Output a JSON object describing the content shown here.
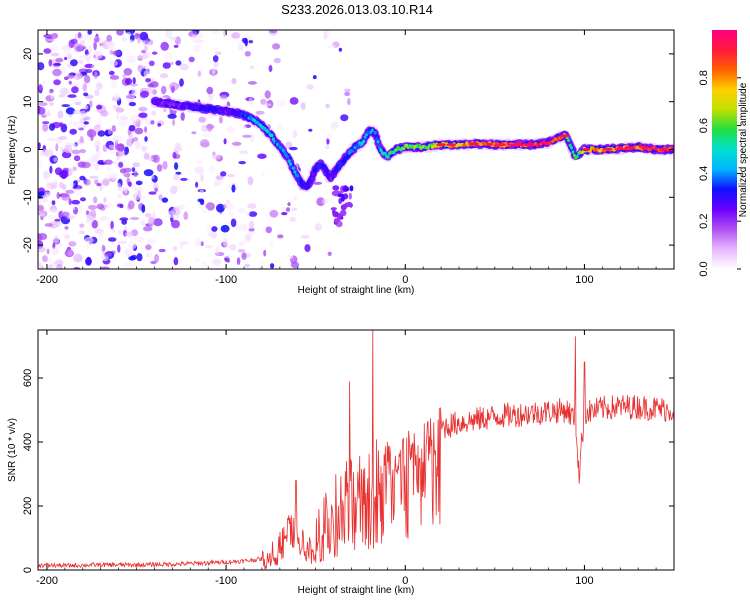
{
  "title": "S233.2026.013.03.10.R14",
  "chart_data": [
    {
      "type": "heatmap",
      "name": "spectrogram",
      "xlabel": "Height of straight line (km)",
      "ylabel": "Frequency (Hz)",
      "xlim": [
        -205,
        150
      ],
      "ylim": [
        -25,
        25
      ],
      "xticks": [
        -200,
        -100,
        0,
        100
      ],
      "xtick_labels": [
        "-200",
        "-100",
        "0",
        "100"
      ],
      "yticks": [
        -20,
        -10,
        0,
        10,
        20
      ],
      "ytick_labels": [
        "-20",
        "-10",
        "0",
        "10",
        "20"
      ],
      "colorbar": {
        "label": "Normalized spectral amplitude",
        "range": [
          0,
          1
        ],
        "ticks": [
          0.0,
          0.2,
          0.4,
          0.6,
          0.8
        ],
        "tick_labels": [
          "0.0",
          "0.2",
          "0.4",
          "0.6",
          "0.8"
        ],
        "colors": [
          "#ffffff",
          "#e6b6ff",
          "#b050f0",
          "#6a00ff",
          "#1010ff",
          "#00b4ff",
          "#00e0d0",
          "#20e040",
          "#c0e000",
          "#ffd000",
          "#ff6000",
          "#ff1a3c",
          "#ff0080"
        ]
      },
      "ridge": {
        "x": [
          -140,
          -130,
          -120,
          -110,
          -100,
          -92,
          -86,
          -80,
          -75,
          -70,
          -65,
          -62,
          -58,
          -55,
          -52,
          -50,
          -47,
          -45,
          -42,
          -38,
          -33,
          -28,
          -24,
          -20,
          -17,
          -14,
          -10,
          -5,
          0,
          10,
          20,
          30,
          40,
          50,
          60,
          70,
          80,
          86,
          90,
          92,
          95,
          100,
          110,
          120,
          130,
          140,
          150
        ],
        "y": [
          10,
          9.5,
          9,
          8.5,
          8,
          7.5,
          6.5,
          5,
          3,
          0.5,
          -2,
          -4.5,
          -7,
          -8,
          -6,
          -4,
          -3,
          -4,
          -6,
          -4,
          -1.5,
          0.5,
          1.5,
          4,
          3.5,
          0,
          -1.5,
          0,
          0.5,
          0.5,
          1,
          1,
          1.2,
          1,
          1,
          1,
          1.5,
          2.5,
          3,
          1,
          -1.5,
          0,
          0,
          0.2,
          0.5,
          0,
          0
        ],
        "amplitude": [
          0.25,
          0.2,
          0.28,
          0.3,
          0.25,
          0.3,
          0.4,
          0.45,
          0.45,
          0.4,
          0.45,
          0.4,
          0.35,
          0.3,
          0.25,
          0.3,
          0.35,
          0.3,
          0.25,
          0.3,
          0.35,
          0.4,
          0.45,
          0.4,
          0.35,
          0.45,
          0.5,
          0.55,
          0.6,
          0.65,
          0.7,
          0.75,
          0.8,
          0.85,
          0.9,
          0.92,
          0.95,
          0.9,
          0.6,
          0.5,
          0.55,
          0.7,
          0.8,
          0.85,
          0.9,
          0.92,
          0.95
        ]
      }
    },
    {
      "type": "line",
      "name": "snr",
      "xlabel": "Height of straight line (km)",
      "ylabel": "SNR (10 * v/v)",
      "xlim": [
        -205,
        150
      ],
      "ylim": [
        0,
        750
      ],
      "xticks": [
        -200,
        -100,
        0,
        100
      ],
      "xtick_labels": [
        "-200",
        "-100",
        "0",
        "100"
      ],
      "yticks": [
        0,
        200,
        400,
        600
      ],
      "ytick_labels": [
        "0",
        "200",
        "400",
        "600"
      ],
      "color": "#e83030",
      "x": [
        -205,
        -190,
        -170,
        -150,
        -130,
        -110,
        -100,
        -90,
        -80,
        -75,
        -70,
        -65,
        -60,
        -55,
        -50,
        -45,
        -40,
        -35,
        -30,
        -25,
        -20,
        -15,
        -10,
        -5,
        0,
        5,
        10,
        20,
        30,
        40,
        50,
        60,
        70,
        80,
        90,
        95,
        97,
        100,
        110,
        120,
        130,
        140,
        150
      ],
      "y": [
        15,
        14,
        16,
        16,
        18,
        22,
        25,
        28,
        35,
        50,
        80,
        150,
        120,
        60,
        90,
        140,
        180,
        230,
        260,
        280,
        300,
        320,
        340,
        360,
        380,
        400,
        420,
        445,
        460,
        470,
        480,
        485,
        490,
        495,
        500,
        470,
        300,
        490,
        505,
        510,
        510,
        505,
        500
      ],
      "spikes": [
        {
          "x": -61,
          "y": 280
        },
        {
          "x": -31,
          "y": 590
        },
        {
          "x": -18,
          "y": 750
        },
        {
          "x": 95,
          "y": 730
        },
        {
          "x": 100,
          "y": 650
        },
        {
          "x": 97,
          "y": 270
        }
      ]
    }
  ]
}
